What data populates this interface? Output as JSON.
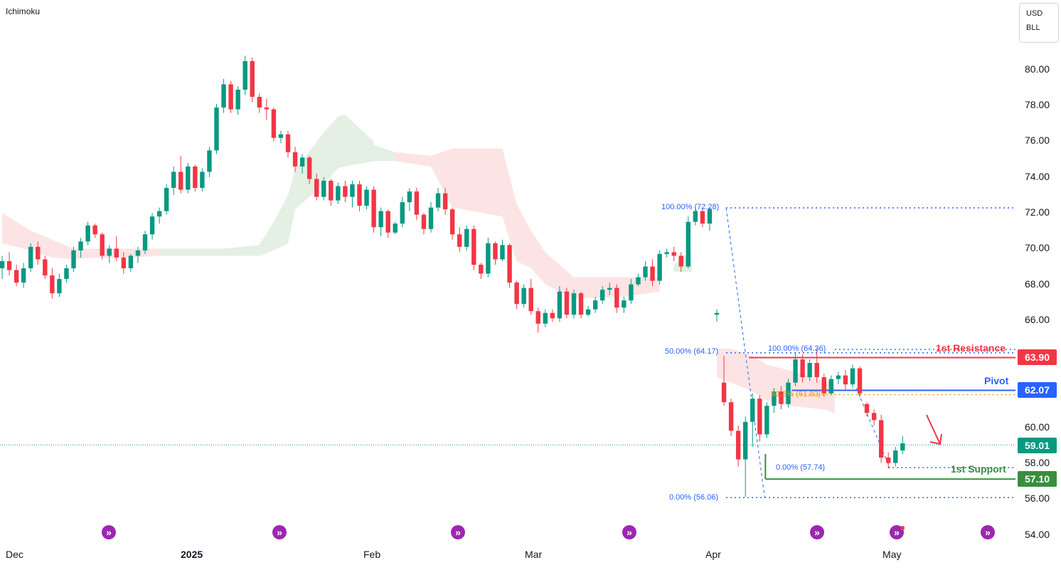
{
  "indicator": "Ichimoku",
  "currency": {
    "line1": "USD",
    "line2": "BLL"
  },
  "colors": {
    "up": "#089981",
    "down": "#f23645",
    "cloud_up": "#e3f0e3",
    "cloud_down": "#fde4e4",
    "fib": "#2962ff",
    "resistance": "#f23645",
    "pivot": "#2962ff",
    "support": "#388e3c",
    "current": "#089981",
    "arrow": "#f23645"
  },
  "y_axis": {
    "ticks": [
      "80.00",
      "78.00",
      "76.00",
      "74.00",
      "72.00",
      "70.00",
      "68.00",
      "66.00",
      "60.00",
      "58.00",
      "56.00",
      "54.00"
    ],
    "tick_values": [
      80,
      78,
      76,
      74,
      72,
      70,
      68,
      66,
      60,
      58,
      56,
      54
    ]
  },
  "x_axis": {
    "labels": [
      {
        "text": "Dec",
        "bold": false
      },
      {
        "text": "2025",
        "bold": true
      },
      {
        "text": "Feb",
        "bold": false
      },
      {
        "text": "Mar",
        "bold": false
      },
      {
        "text": "Apr",
        "bold": false
      },
      {
        "text": "May",
        "bold": false
      }
    ]
  },
  "price_tags": {
    "resistance": {
      "text": "63.90",
      "value": 63.9,
      "color": "#f23645"
    },
    "pivot": {
      "text": "62.07",
      "value": 62.07,
      "color": "#2962ff"
    },
    "current": {
      "text": "59.01",
      "value": 59.01,
      "color": "#089981"
    },
    "support": {
      "text": "57.10",
      "value": 57.1,
      "color": "#388e3c"
    }
  },
  "levels": {
    "resistance_label": "1st Resistance",
    "pivot_label": "Pivot",
    "support_label": "1st Support"
  },
  "fib_labels": {
    "big_top": "100.00% (72.28)",
    "big_mid": "50.00% (64.17)",
    "big_bottom": "0.00% (56.06)",
    "small_top": "100.00% (64.36)",
    "small_mid": "61.8% (61.83)",
    "small_bottom": "0.00% (57.74)"
  },
  "chart_data": {
    "type": "candlestick",
    "ylim": [
      53.2,
      82.2
    ],
    "current_price": 59.01,
    "candles": [
      [
        68.9,
        69.6,
        68.3,
        69.3
      ],
      [
        69.3,
        69.8,
        68.5,
        68.8
      ],
      [
        68.8,
        69.1,
        67.9,
        68.1
      ],
      [
        68.1,
        69.2,
        67.8,
        68.9
      ],
      [
        68.9,
        70.3,
        68.7,
        70.1
      ],
      [
        70.1,
        70.4,
        69.1,
        69.4
      ],
      [
        69.4,
        69.6,
        68.3,
        68.5
      ],
      [
        68.5,
        68.9,
        67.2,
        67.5
      ],
      [
        67.5,
        68.6,
        67.3,
        68.3
      ],
      [
        68.3,
        69.1,
        68.1,
        68.9
      ],
      [
        68.9,
        70.1,
        68.7,
        69.9
      ],
      [
        69.9,
        70.6,
        69.5,
        70.4
      ],
      [
        70.4,
        71.5,
        70.2,
        71.3
      ],
      [
        71.3,
        71.4,
        70.6,
        70.8
      ],
      [
        70.8,
        70.9,
        69.4,
        69.6
      ],
      [
        69.6,
        70.2,
        69.2,
        70.0
      ],
      [
        70.0,
        70.7,
        69.3,
        69.5
      ],
      [
        69.5,
        69.8,
        68.6,
        68.9
      ],
      [
        68.9,
        69.7,
        68.7,
        69.6
      ],
      [
        69.6,
        70.1,
        69.2,
        69.9
      ],
      [
        69.9,
        71.0,
        69.7,
        70.8
      ],
      [
        70.8,
        72.0,
        70.5,
        71.8
      ],
      [
        71.8,
        72.3,
        71.4,
        72.1
      ],
      [
        72.1,
        73.6,
        71.9,
        73.4
      ],
      [
        73.4,
        74.6,
        73.0,
        74.3
      ],
      [
        74.3,
        75.2,
        73.1,
        73.3
      ],
      [
        73.3,
        74.8,
        73.1,
        74.6
      ],
      [
        74.6,
        74.7,
        73.2,
        73.4
      ],
      [
        73.4,
        74.5,
        73.2,
        74.3
      ],
      [
        74.3,
        75.7,
        74.0,
        75.5
      ],
      [
        75.5,
        78.1,
        75.3,
        77.9
      ],
      [
        77.9,
        79.5,
        77.6,
        79.2
      ],
      [
        79.2,
        79.4,
        77.6,
        77.8
      ],
      [
        77.8,
        79.1,
        77.5,
        78.9
      ],
      [
        78.9,
        80.8,
        78.6,
        80.5
      ],
      [
        80.5,
        80.7,
        78.2,
        78.5
      ],
      [
        78.5,
        78.7,
        77.6,
        77.9
      ],
      [
        77.9,
        78.4,
        77.2,
        77.8
      ],
      [
        77.8,
        77.9,
        76.0,
        76.2
      ],
      [
        76.2,
        76.6,
        75.9,
        76.4
      ],
      [
        76.4,
        76.6,
        75.1,
        75.4
      ],
      [
        75.4,
        75.7,
        74.3,
        74.6
      ],
      [
        74.6,
        75.3,
        74.2,
        75.1
      ],
      [
        75.1,
        75.2,
        73.6,
        73.9
      ],
      [
        73.9,
        74.2,
        72.7,
        72.9
      ],
      [
        72.9,
        74.0,
        72.7,
        73.8
      ],
      [
        73.8,
        73.9,
        72.4,
        72.7
      ],
      [
        72.7,
        73.7,
        72.5,
        73.5
      ],
      [
        73.5,
        73.8,
        72.6,
        72.9
      ],
      [
        72.9,
        73.8,
        72.3,
        73.6
      ],
      [
        73.6,
        73.8,
        72.1,
        72.4
      ],
      [
        72.4,
        73.5,
        72.2,
        73.3
      ],
      [
        73.3,
        73.5,
        70.9,
        71.2
      ],
      [
        71.2,
        72.3,
        70.7,
        72.1
      ],
      [
        72.1,
        72.2,
        70.6,
        70.9
      ],
      [
        70.9,
        71.5,
        70.8,
        71.4
      ],
      [
        71.4,
        72.9,
        71.2,
        72.6
      ],
      [
        72.6,
        73.4,
        72.1,
        73.2
      ],
      [
        73.2,
        73.4,
        71.6,
        71.9
      ],
      [
        71.9,
        72.0,
        70.8,
        71.1
      ],
      [
        71.1,
        72.6,
        70.9,
        72.3
      ],
      [
        72.3,
        73.4,
        72.1,
        73.1
      ],
      [
        73.1,
        73.4,
        71.9,
        72.2
      ],
      [
        72.2,
        72.3,
        70.5,
        70.8
      ],
      [
        70.8,
        71.2,
        69.8,
        70.1
      ],
      [
        70.1,
        71.3,
        69.9,
        71.1
      ],
      [
        71.1,
        71.3,
        68.8,
        69.1
      ],
      [
        69.1,
        69.2,
        68.3,
        68.6
      ],
      [
        68.6,
        70.6,
        68.4,
        70.3
      ],
      [
        70.3,
        70.4,
        69.1,
        69.4
      ],
      [
        69.4,
        70.5,
        69.3,
        70.2
      ],
      [
        70.2,
        70.3,
        67.8,
        68.1
      ],
      [
        68.1,
        68.2,
        66.6,
        66.9
      ],
      [
        66.9,
        68.0,
        66.7,
        67.8
      ],
      [
        67.8,
        68.3,
        66.3,
        66.5
      ],
      [
        66.5,
        66.7,
        65.3,
        65.8
      ],
      [
        65.8,
        66.6,
        65.6,
        66.4
      ],
      [
        66.4,
        66.6,
        65.9,
        66.1
      ],
      [
        66.1,
        67.9,
        65.9,
        67.6
      ],
      [
        67.6,
        67.8,
        66.1,
        66.3
      ],
      [
        66.3,
        67.7,
        66.1,
        67.5
      ],
      [
        67.5,
        67.6,
        66.1,
        66.3
      ],
      [
        66.3,
        66.8,
        66.2,
        66.6
      ],
      [
        66.6,
        67.3,
        66.4,
        67.1
      ],
      [
        67.1,
        67.9,
        66.9,
        67.7
      ],
      [
        67.7,
        68.1,
        67.4,
        67.8
      ],
      [
        67.8,
        68.0,
        66.4,
        66.7
      ],
      [
        66.7,
        67.3,
        66.4,
        67.1
      ],
      [
        67.1,
        68.3,
        66.9,
        68.0
      ],
      [
        68.0,
        68.6,
        67.9,
        68.4
      ],
      [
        68.4,
        69.3,
        68.2,
        69.0
      ],
      [
        69.0,
        69.4,
        67.9,
        68.2
      ],
      [
        68.2,
        69.9,
        68.0,
        69.7
      ],
      [
        69.7,
        70.0,
        69.5,
        69.8
      ],
      [
        69.8,
        70.1,
        69.3,
        69.6
      ],
      [
        69.6,
        69.8,
        68.7,
        69.0
      ],
      [
        69.0,
        71.8,
        68.9,
        71.5
      ],
      [
        71.5,
        72.3,
        71.3,
        72.1
      ],
      [
        72.1,
        72.3,
        71.2,
        71.4
      ],
      [
        71.4,
        72.3,
        71.0,
        72.2
      ],
      [
        66.3,
        66.6,
        65.9,
        66.4
      ],
      [
        62.5,
        64.0,
        61.2,
        61.4
      ],
      [
        61.4,
        61.6,
        59.5,
        59.8
      ],
      [
        59.8,
        60.1,
        57.8,
        58.2
      ],
      [
        58.2,
        60.6,
        56.1,
        60.3
      ],
      [
        60.3,
        61.9,
        58.9,
        61.6
      ],
      [
        61.6,
        61.8,
        59.2,
        59.6
      ],
      [
        59.6,
        61.4,
        59.4,
        61.2
      ],
      [
        61.2,
        62.2,
        60.8,
        62.0
      ],
      [
        62.0,
        62.3,
        61.0,
        61.3
      ],
      [
        61.3,
        62.7,
        61.1,
        62.5
      ],
      [
        62.5,
        64.2,
        62.3,
        63.8
      ],
      [
        63.8,
        64.1,
        62.5,
        62.8
      ],
      [
        62.8,
        63.8,
        62.6,
        63.6
      ],
      [
        63.6,
        64.4,
        62.5,
        62.8
      ],
      [
        62.8,
        63.0,
        61.7,
        61.9
      ],
      [
        61.9,
        62.9,
        61.8,
        62.7
      ],
      [
        62.7,
        63.1,
        62.4,
        62.9
      ],
      [
        62.9,
        63.2,
        62.1,
        62.4
      ],
      [
        62.4,
        63.5,
        62.2,
        63.3
      ],
      [
        63.3,
        63.4,
        61.7,
        61.9
      ],
      [
        61.3,
        61.4,
        60.6,
        60.8
      ],
      [
        60.8,
        61.0,
        60.1,
        60.4
      ],
      [
        60.4,
        60.7,
        58.0,
        58.3
      ],
      [
        58.3,
        58.6,
        57.7,
        58.0
      ],
      [
        58.0,
        58.9,
        57.8,
        58.7
      ],
      [
        58.7,
        59.5,
        58.5,
        59.1
      ]
    ],
    "cloud_up": [
      {
        "x": [
          22,
          31
        ],
        "top": [
          70.0,
          70.0
        ],
        "bottom": [
          69.6,
          69.6
        ]
      },
      {
        "x": [
          31,
          36,
          38,
          40,
          41,
          45,
          47,
          48,
          52
        ],
        "top": [
          70.0,
          70.2,
          71.5,
          73.0,
          74.4,
          76.5,
          77.4,
          77.5,
          76.0
        ],
        "bottom": [
          69.6,
          69.6,
          69.9,
          70.3,
          72.2,
          73.6,
          74.5,
          74.6,
          74.9
        ]
      },
      {
        "x": [
          52,
          55
        ],
        "top": [
          75.8,
          75.4
        ],
        "bottom": [
          74.9,
          74.9
        ]
      },
      {
        "x": [
          94,
          96.5
        ],
        "top": [
          69.1,
          69.9
        ],
        "bottom": [
          68.7,
          68.7
        ]
      }
    ],
    "cloud_down": [
      {
        "x": [
          0,
          2,
          4,
          7,
          10,
          13,
          18,
          22
        ],
        "top": [
          72.0,
          71.5,
          71.0,
          70.5,
          70.0,
          70.0,
          70.0,
          70.0
        ],
        "bottom": [
          70.3,
          70.1,
          69.9,
          69.5,
          69.4,
          69.5,
          69.5,
          69.6
        ]
      },
      {
        "x": [
          55,
          60,
          63,
          70,
          71,
          72,
          74,
          76,
          80,
          87,
          92
        ],
        "top": [
          75.4,
          75.2,
          75.6,
          75.6,
          74.0,
          72.5,
          71.0,
          69.8,
          68.4,
          68.4,
          68.4
        ],
        "bottom": [
          74.9,
          74.6,
          72.3,
          71.8,
          70.5,
          69.3,
          68.9,
          68.0,
          67.2,
          67.3,
          67.6
        ]
      },
      {
        "x": [
          100,
          102,
          105,
          107,
          110,
          115,
          116.5
        ],
        "top": [
          64.4,
          64.4,
          64.0,
          63.5,
          63.2,
          62.6,
          62.4
        ],
        "bottom": [
          62.8,
          62.5,
          62.0,
          61.5,
          61.2,
          61.0,
          60.8
        ]
      }
    ],
    "fib_big": {
      "top": 72.28,
      "mid": 64.17,
      "bottom": 56.06
    },
    "fib_small": {
      "top": 64.36,
      "mid": 61.83,
      "bottom": 57.74
    },
    "levels": {
      "resistance": 63.9,
      "pivot": 62.07,
      "support": 57.1
    }
  }
}
